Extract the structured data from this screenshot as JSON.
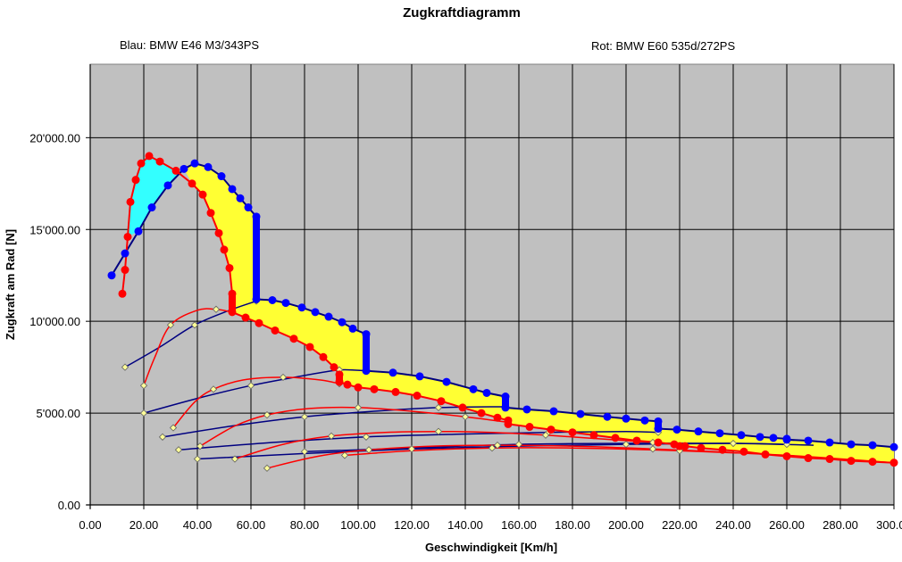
{
  "chart_data": {
    "type": "line",
    "title": "Zugkraftdiagramm",
    "xlabel": "Geschwindigkeit [Km/h]",
    "ylabel": "Zugkraft am Rad [N]",
    "xlim": [
      0,
      300
    ],
    "ylim": [
      0,
      24000
    ],
    "grid": true,
    "x_ticks": [
      "0.00",
      "20.00",
      "40.00",
      "60.00",
      "80.00",
      "100.00",
      "120.00",
      "140.00",
      "160.00",
      "180.00",
      "200.00",
      "220.00",
      "240.00",
      "260.00",
      "280.00",
      "300.00"
    ],
    "y_ticks": [
      "0.00",
      "5'000.00",
      "10'000.00",
      "15'000.00",
      "20'000.00"
    ],
    "y_tick_values": [
      0,
      5000,
      10000,
      15000,
      20000
    ],
    "legend": [
      {
        "text": "Blau: BMW E46 M3/343PS",
        "color": "#0000ff"
      },
      {
        "text": "Rot: BMW E60 535d/272PS",
        "color": "#ff0000"
      }
    ],
    "colors": {
      "plot_bg": "#c0c0c0",
      "m3_advantage_fill": "#ffff33",
      "e60_advantage_fill": "#33ffff",
      "blue_marker": "#0000ff",
      "red_marker": "#ff0000",
      "blue_line": "#000080",
      "red_line": "#ff0000",
      "marker_edge": "#000000",
      "small_marker": "#ffff99"
    },
    "series": [
      {
        "name": "Blau: BMW E46 M3/343PS",
        "role": "envelope",
        "color": "#0000ff",
        "points": [
          [
            8,
            12500
          ],
          [
            13,
            13700
          ],
          [
            18,
            14900
          ],
          [
            23,
            16200
          ],
          [
            29,
            17400
          ],
          [
            35,
            18300
          ],
          [
            39,
            18600
          ],
          [
            44,
            18400
          ],
          [
            49,
            17900
          ],
          [
            53,
            17200
          ],
          [
            56,
            16700
          ],
          [
            59,
            16200
          ],
          [
            62,
            15700
          ],
          [
            62,
            11200
          ],
          [
            68,
            11150
          ],
          [
            73,
            11000
          ],
          [
            79,
            10750
          ],
          [
            84,
            10500
          ],
          [
            89,
            10250
          ],
          [
            94,
            9950
          ],
          [
            98,
            9600
          ],
          [
            103,
            9300
          ],
          [
            103,
            7300
          ],
          [
            113,
            7200
          ],
          [
            123,
            7000
          ],
          [
            133,
            6700
          ],
          [
            143,
            6300
          ],
          [
            148,
            6100
          ],
          [
            155,
            5900
          ],
          [
            155,
            5300
          ],
          [
            163,
            5200
          ],
          [
            173,
            5100
          ],
          [
            183,
            4950
          ],
          [
            193,
            4800
          ],
          [
            200,
            4700
          ],
          [
            207,
            4600
          ],
          [
            212,
            4550
          ],
          [
            212,
            4150
          ],
          [
            219,
            4100
          ],
          [
            227,
            4000
          ],
          [
            235,
            3900
          ],
          [
            243,
            3800
          ],
          [
            250,
            3700
          ],
          [
            255,
            3650
          ],
          [
            260,
            3600
          ],
          [
            260,
            3550
          ],
          [
            268,
            3500
          ],
          [
            276,
            3400
          ],
          [
            284,
            3300
          ],
          [
            292,
            3250
          ],
          [
            300,
            3150
          ]
        ]
      },
      {
        "name": "Rot: BMW E60 535d/272PS",
        "role": "envelope",
        "color": "#ff0000",
        "points": [
          [
            12,
            11500
          ],
          [
            13,
            12800
          ],
          [
            14,
            14600
          ],
          [
            15,
            16500
          ],
          [
            17,
            17700
          ],
          [
            19,
            18600
          ],
          [
            22,
            19000
          ],
          [
            26,
            18700
          ],
          [
            32,
            18200
          ],
          [
            38,
            17500
          ],
          [
            42,
            16900
          ],
          [
            45,
            15900
          ],
          [
            48,
            14800
          ],
          [
            50,
            13900
          ],
          [
            52,
            12900
          ],
          [
            53,
            11500
          ],
          [
            53,
            10500
          ],
          [
            58,
            10200
          ],
          [
            63,
            9900
          ],
          [
            69,
            9500
          ],
          [
            76,
            9050
          ],
          [
            82,
            8600
          ],
          [
            87,
            8050
          ],
          [
            91,
            7500
          ],
          [
            93,
            7100
          ],
          [
            93,
            6700
          ],
          [
            96,
            6550
          ],
          [
            100,
            6400
          ],
          [
            106,
            6300
          ],
          [
            114,
            6150
          ],
          [
            122,
            5950
          ],
          [
            131,
            5650
          ],
          [
            139,
            5300
          ],
          [
            146,
            5000
          ],
          [
            152,
            4750
          ],
          [
            156,
            4600
          ],
          [
            156,
            4400
          ],
          [
            164,
            4250
          ],
          [
            172,
            4100
          ],
          [
            180,
            3950
          ],
          [
            188,
            3800
          ],
          [
            196,
            3650
          ],
          [
            204,
            3500
          ],
          [
            212,
            3400
          ],
          [
            218,
            3300
          ],
          [
            220,
            3200
          ],
          [
            222,
            3200
          ],
          [
            228,
            3100
          ],
          [
            236,
            3000
          ],
          [
            244,
            2900
          ],
          [
            252,
            2750
          ],
          [
            260,
            2650
          ],
          [
            268,
            2550
          ],
          [
            276,
            2500
          ],
          [
            284,
            2400
          ],
          [
            292,
            2350
          ],
          [
            300,
            2300
          ]
        ]
      },
      {
        "name": "",
        "gear": 1,
        "car": "M3",
        "color": "#000080",
        "points": [
          [
            13,
            7500
          ],
          [
            26,
            8600
          ],
          [
            39,
            9800
          ],
          [
            52,
            10600
          ],
          [
            62,
            11100
          ]
        ]
      },
      {
        "name": "",
        "gear": 2,
        "car": "M3",
        "color": "#000080",
        "points": [
          [
            20,
            5000
          ],
          [
            40,
            5800
          ],
          [
            60,
            6500
          ],
          [
            80,
            7050
          ],
          [
            93,
            7350
          ],
          [
            103,
            7300
          ]
        ]
      },
      {
        "name": "",
        "gear": 3,
        "car": "M3",
        "color": "#000080",
        "points": [
          [
            27,
            3700
          ],
          [
            53,
            4300
          ],
          [
            80,
            4800
          ],
          [
            106,
            5100
          ],
          [
            130,
            5300
          ],
          [
            155,
            5350
          ]
        ]
      },
      {
        "name": "",
        "gear": 4,
        "car": "M3",
        "color": "#000080",
        "points": [
          [
            33,
            3000
          ],
          [
            68,
            3400
          ],
          [
            103,
            3700
          ],
          [
            137,
            3850
          ],
          [
            171,
            3950
          ],
          [
            200,
            4000
          ],
          [
            212,
            3950
          ]
        ]
      },
      {
        "name": "",
        "gear": 5,
        "car": "M3",
        "color": "#000080",
        "points": [
          [
            40,
            2500
          ],
          [
            80,
            2800
          ],
          [
            120,
            3050
          ],
          [
            160,
            3200
          ],
          [
            200,
            3300
          ],
          [
            240,
            3350
          ],
          [
            260,
            3300
          ]
        ]
      },
      {
        "name": "",
        "gear": 6,
        "car": "M3",
        "color": "#000080",
        "points": [
          [
            80,
            2900
          ],
          [
            120,
            3100
          ],
          [
            160,
            3300
          ],
          [
            200,
            3350
          ],
          [
            240,
            3350
          ],
          [
            270,
            3250
          ]
        ]
      },
      {
        "name": "",
        "gear": 1,
        "car": "E60",
        "color": "#ff0000",
        "points": [
          [
            20,
            6500
          ],
          [
            24,
            8000
          ],
          [
            30,
            9800
          ],
          [
            40,
            10600
          ],
          [
            47,
            10650
          ],
          [
            53,
            10500
          ]
        ]
      },
      {
        "name": "",
        "gear": 2,
        "car": "E60",
        "color": "#ff0000",
        "points": [
          [
            31,
            4200
          ],
          [
            39,
            5600
          ],
          [
            46,
            6300
          ],
          [
            57,
            6800
          ],
          [
            72,
            6950
          ],
          [
            86,
            6800
          ],
          [
            93,
            6600
          ]
        ]
      },
      {
        "name": "",
        "gear": 3,
        "car": "E60",
        "color": "#ff0000",
        "points": [
          [
            41,
            3200
          ],
          [
            54,
            4300
          ],
          [
            66,
            4900
          ],
          [
            82,
            5250
          ],
          [
            100,
            5300
          ],
          [
            120,
            5100
          ],
          [
            140,
            4800
          ],
          [
            156,
            4500
          ]
        ]
      },
      {
        "name": "",
        "gear": 4,
        "car": "E60",
        "color": "#ff0000",
        "points": [
          [
            54,
            2500
          ],
          [
            72,
            3300
          ],
          [
            90,
            3750
          ],
          [
            110,
            3950
          ],
          [
            130,
            4000
          ],
          [
            150,
            3950
          ],
          [
            170,
            3800
          ],
          [
            190,
            3600
          ],
          [
            210,
            3400
          ]
        ]
      },
      {
        "name": "",
        "gear": 5,
        "car": "E60",
        "color": "#ff0000",
        "points": [
          [
            66,
            2000
          ],
          [
            85,
            2650
          ],
          [
            104,
            3000
          ],
          [
            128,
            3200
          ],
          [
            152,
            3250
          ],
          [
            180,
            3200
          ],
          [
            210,
            3050
          ],
          [
            240,
            2850
          ]
        ]
      },
      {
        "name": "",
        "gear": 6,
        "car": "E60",
        "color": "#ff0000",
        "points": [
          [
            95,
            2700
          ],
          [
            120,
            2950
          ],
          [
            150,
            3100
          ],
          [
            180,
            3100
          ],
          [
            220,
            2950
          ],
          [
            260,
            2700
          ],
          [
            300,
            2300
          ]
        ]
      }
    ]
  }
}
